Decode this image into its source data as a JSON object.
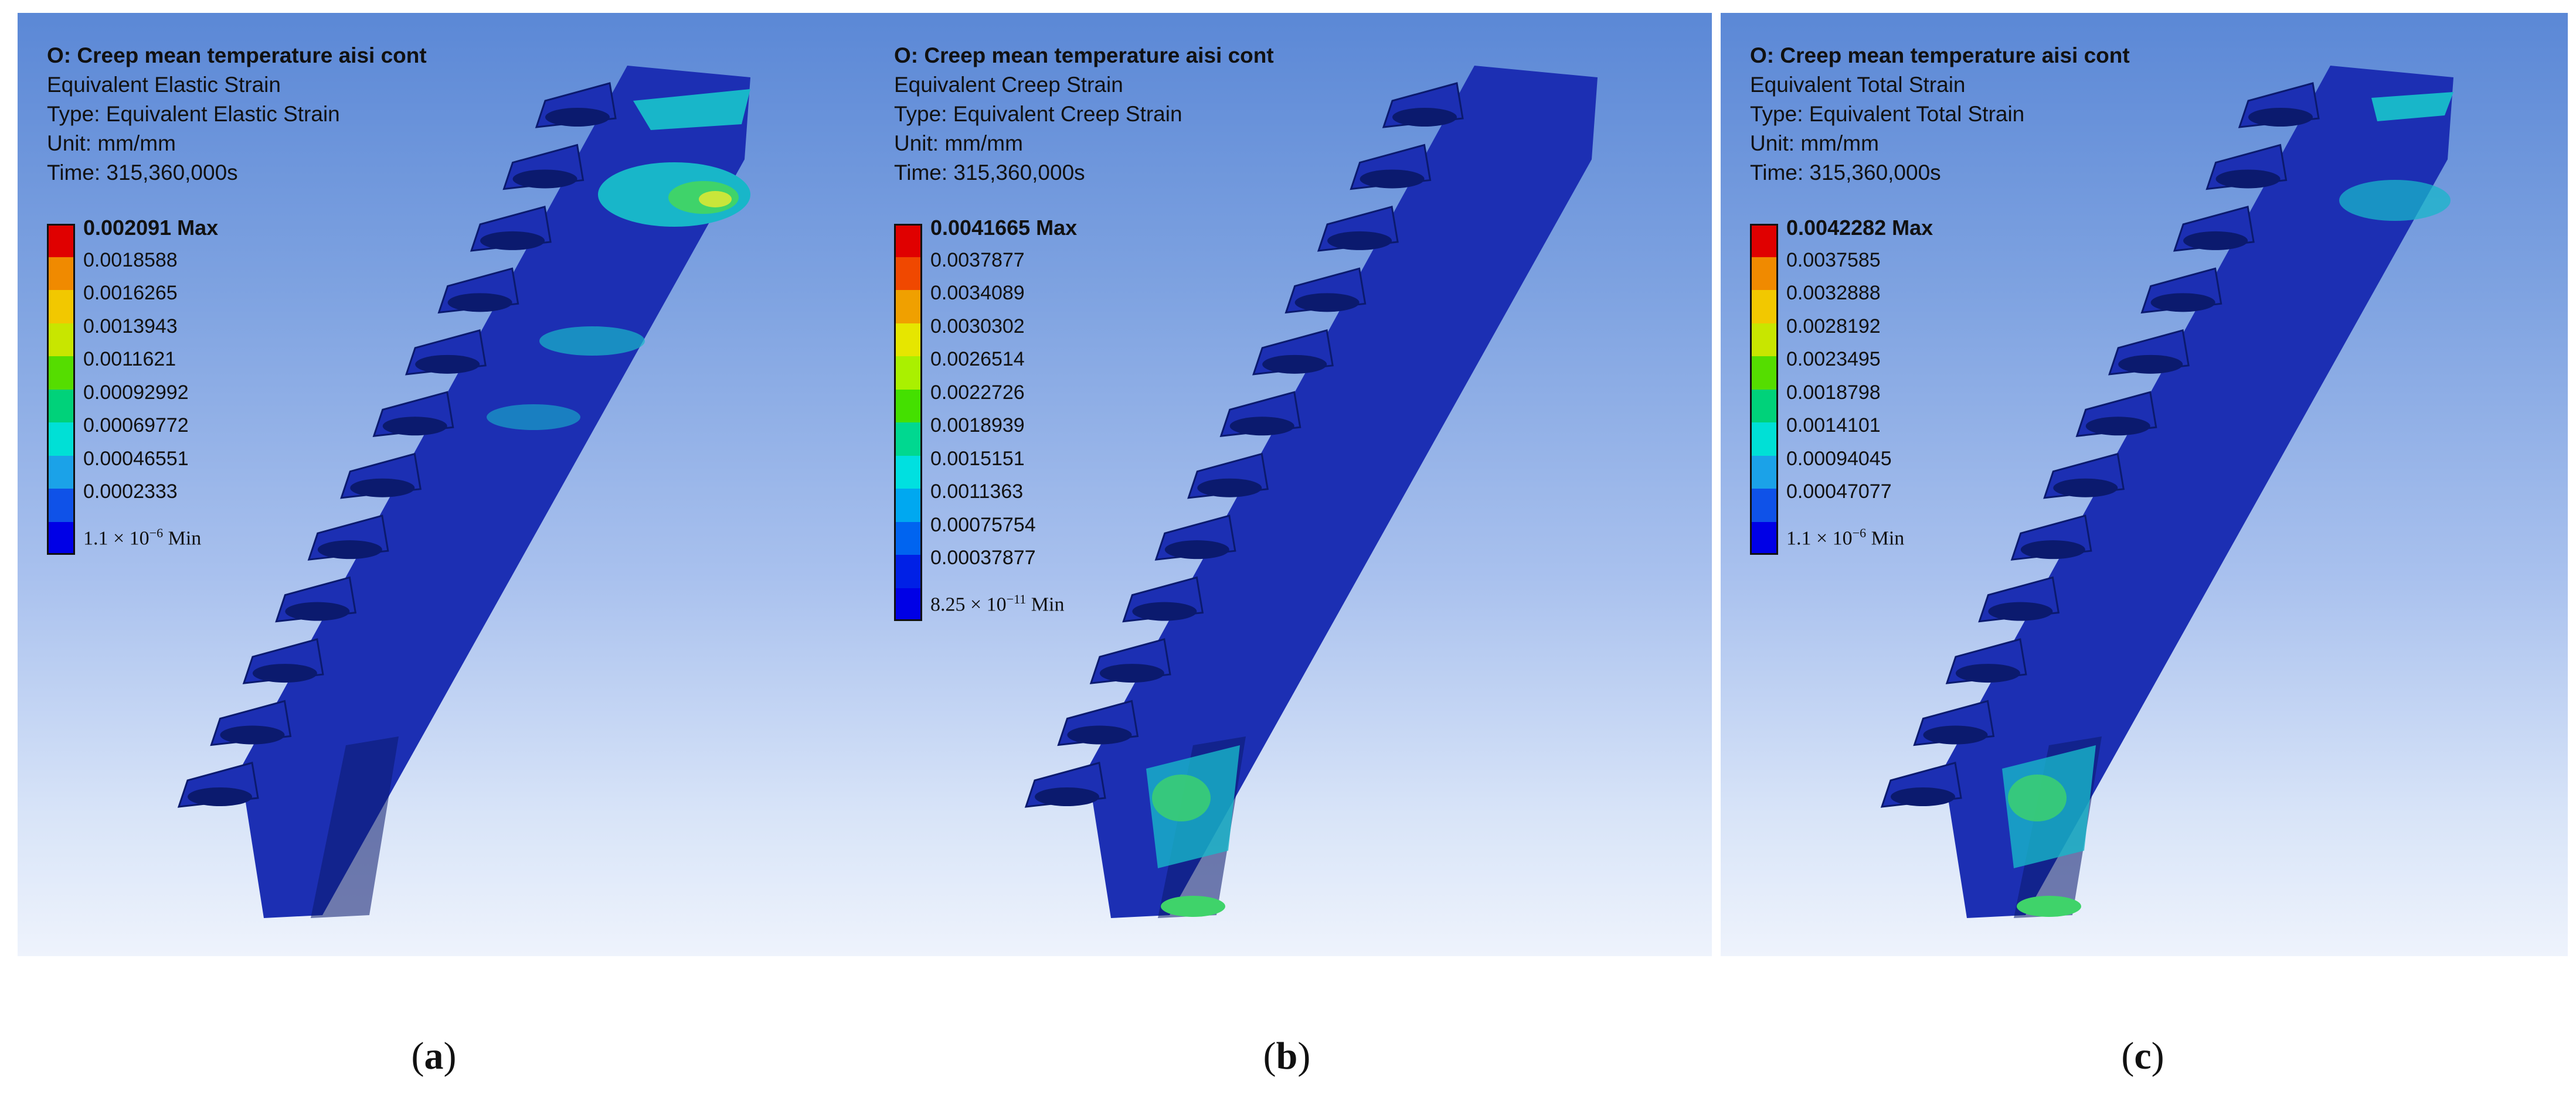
{
  "panels": [
    {
      "id": "a",
      "title": "O: Creep mean temperature aisi cont",
      "result": "Equivalent Elastic Strain",
      "type": "Type: Equivalent Elastic Strain",
      "unit": "Unit: mm/mm",
      "time": "Time: 315,360,000s",
      "legend": [
        "0.002091 Max",
        "0.0018588",
        "0.0016265",
        "0.0013943",
        "0.0011621",
        "0.00092992",
        "0.00069772",
        "0.00046551",
        "0.0002333"
      ],
      "legend_min_base": "1.1 × 10",
      "legend_min_exp": "−6",
      "legend_min_suffix": " Min",
      "caption": "a"
    },
    {
      "id": "b",
      "title": "O: Creep mean temperature aisi cont",
      "result": "Equivalent Creep Strain",
      "type": "Type: Equivalent Creep Strain",
      "unit": "Unit: mm/mm",
      "time": "Time: 315,360,000s",
      "legend": [
        "0.0041665 Max",
        "0.0037877",
        "0.0034089",
        "0.0030302",
        "0.0026514",
        "0.0022726",
        "0.0018939",
        "0.0015151",
        "0.0011363",
        "0.00075754",
        "0.00037877"
      ],
      "legend_min_base": "8.25 × 10",
      "legend_min_exp": "−11",
      "legend_min_suffix": " Min",
      "caption": "b"
    },
    {
      "id": "c",
      "title": "O: Creep mean temperature aisi cont",
      "result": "Equivalent Total Strain",
      "type": "Type: Equivalent Total Strain",
      "unit": "Unit: mm/mm",
      "time": "Time: 315,360,000s",
      "legend": [
        "0.0042282 Max",
        "0.0037585",
        "0.0032888",
        "0.0028192",
        "0.0023495",
        "0.0018798",
        "0.0014101",
        "0.00094045",
        "0.00047077"
      ],
      "legend_min_base": "1.1 × 10",
      "legend_min_exp": "−6",
      "legend_min_suffix": " Min",
      "caption": "c"
    }
  ],
  "caption_open": "(",
  "caption_close": ")",
  "colors": {
    "scale9": [
      "#e00000",
      "#f08a00",
      "#f2c800",
      "#c8e600",
      "#55dd00",
      "#00d27a",
      "#00e0d6",
      "#1ba2e8",
      "#0f52e8",
      "#0000e6"
    ],
    "scale11": [
      "#e00000",
      "#f04800",
      "#f0a000",
      "#e6e600",
      "#aaf000",
      "#44e000",
      "#00d890",
      "#00e0e0",
      "#00a8f0",
      "#0064f0",
      "#0020e6",
      "#0000e6"
    ],
    "model_base": "#1c2fb3",
    "model_dark": "#0b1a6e",
    "hot_cyan": "#18b6c9",
    "hot_green": "#3fd36a",
    "hot_yellow": "#c9e63a"
  }
}
